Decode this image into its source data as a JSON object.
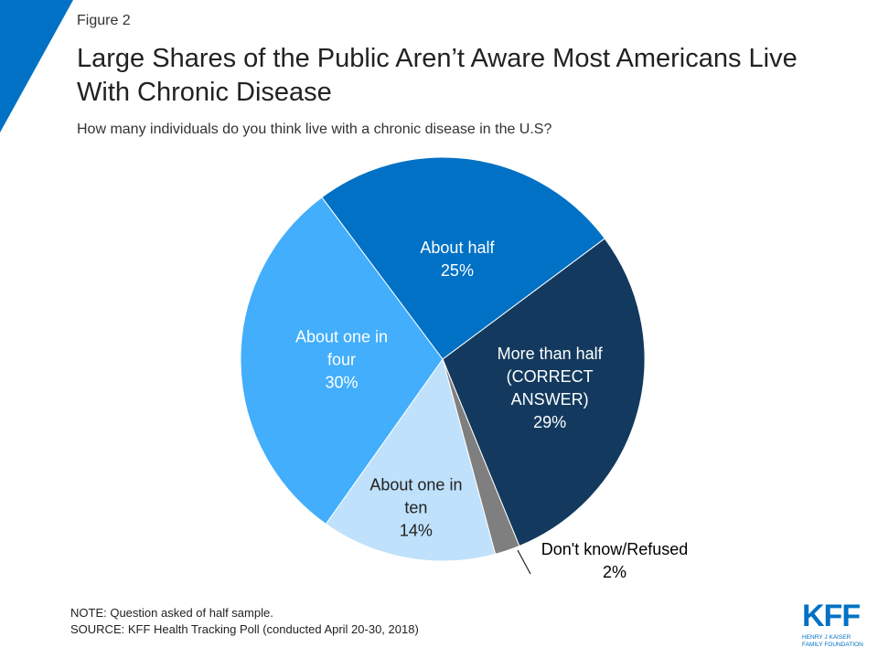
{
  "chart_data": {
    "type": "pie",
    "figure_label": "Figure 2",
    "title": "Large Shares of the Public Aren’t Aware Most Americans Live With Chronic Disease",
    "subtitle": "How many individuals do you think live with a chronic disease in the U.S?",
    "categories": [
      "More than half (CORRECT ANSWER)",
      "Don't know/Refused",
      "About one in ten",
      "About one in four",
      "About half"
    ],
    "values": [
      29,
      2,
      14,
      30,
      25
    ],
    "value_labels": [
      "29%",
      "2%",
      "14%",
      "30%",
      "25%"
    ],
    "colors": [
      "#133a5e",
      "#7f7f7f",
      "#bfe1fb",
      "#42aefc",
      "#0071c5"
    ],
    "note": "NOTE: Question asked of half sample.",
    "source": "SOURCE: KFF Health Tracking Poll (conducted April 20-30, 2018)"
  },
  "logo": {
    "name": "KFF",
    "tagline": "HENRY J KAISER FAMILY FOUNDATION"
  }
}
